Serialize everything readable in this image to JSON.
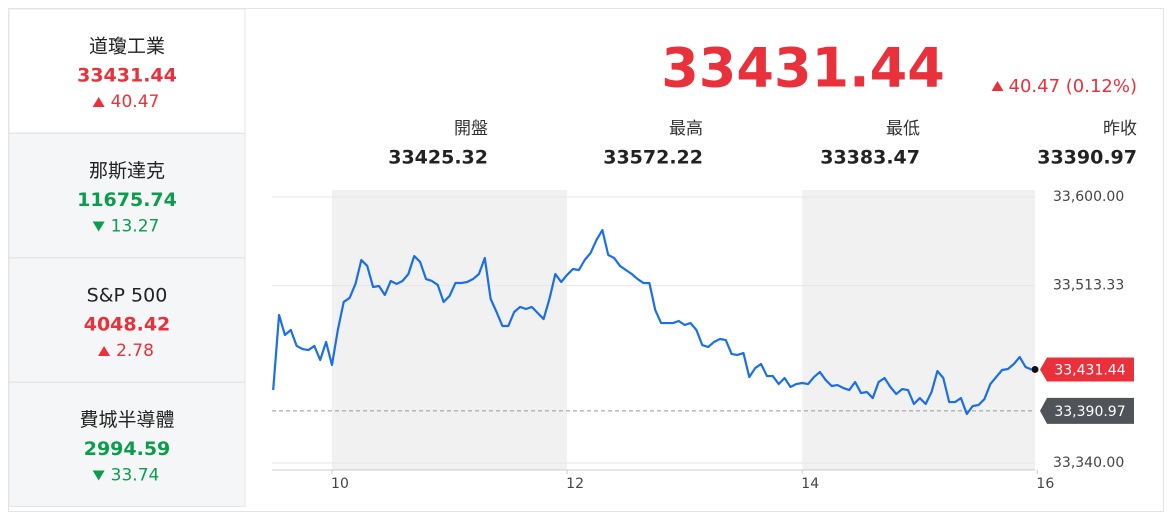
{
  "sidebar": {
    "items": [
      {
        "name": "道瓊工業",
        "value": 33431.44,
        "change": 40.47,
        "direction": "up"
      },
      {
        "name": "那斯達克",
        "value": 11675.74,
        "change": 13.27,
        "direction": "down"
      },
      {
        "name": "S&P 500",
        "value": 4048.42,
        "change": 2.78,
        "direction": "up"
      },
      {
        "name": "費城半導體",
        "value": 2994.59,
        "change": 33.74,
        "direction": "down"
      }
    ]
  },
  "quote": {
    "value": 33431.44,
    "change": "40.47 (0.12%)",
    "direction": "up",
    "stats": [
      {
        "label": "開盤",
        "value": 33425.32
      },
      {
        "label": "最高",
        "value": 33572.22
      },
      {
        "label": "最低",
        "value": 33383.47
      },
      {
        "label": "昨收",
        "value": 33390.97
      }
    ]
  },
  "colors": {
    "up": "#e8313a",
    "down": "#0b9c4c"
  },
  "chart_data": {
    "type": "line",
    "color": "#1a6fe6",
    "x": [
      9.5,
      9.55,
      9.6,
      9.65,
      9.7,
      9.75,
      9.8,
      9.85,
      9.9,
      9.95,
      10,
      10.05,
      10.1,
      10.15,
      10.2,
      10.25,
      10.3,
      10.35,
      10.4,
      10.45,
      10.5,
      10.55,
      10.6,
      10.65,
      10.7,
      10.75,
      10.8,
      10.85,
      10.9,
      10.95,
      11,
      11.05,
      11.1,
      11.15,
      11.2,
      11.25,
      11.3,
      11.35,
      11.4,
      11.45,
      11.5,
      11.55,
      11.6,
      11.65,
      11.7,
      11.75,
      11.8,
      11.85,
      11.9,
      11.95,
      12,
      12.05,
      12.1,
      12.15,
      12.2,
      12.25,
      12.3,
      12.35,
      12.4,
      12.45,
      12.5,
      12.55,
      12.6,
      12.65,
      12.7,
      12.75,
      12.8,
      12.85,
      12.9,
      12.95,
      13,
      13.05,
      13.1,
      13.15,
      13.2,
      13.25,
      13.3,
      13.35,
      13.4,
      13.45,
      13.5,
      13.55,
      13.6,
      13.65,
      13.7,
      13.75,
      13.8,
      13.85,
      13.9,
      13.95,
      14,
      14.05,
      14.1,
      14.15,
      14.2,
      14.25,
      14.3,
      14.35,
      14.4,
      14.45,
      14.5,
      14.55,
      14.6,
      14.65,
      14.7,
      14.75,
      14.8,
      14.85,
      14.9,
      14.95,
      15,
      15.05,
      15.1,
      15.15,
      15.2,
      15.25,
      15.3,
      15.35,
      15.4,
      15.45,
      15.5,
      15.55,
      15.6,
      15.65,
      15.7,
      15.75,
      15.8,
      15.85,
      15.9,
      15.95
    ],
    "values": [
      33411.3,
      33484.7,
      33465.1,
      33470.0,
      33454.4,
      33451.4,
      33450.4,
      33454.4,
      33440.7,
      33458.3,
      33435.8,
      33470.0,
      33497.4,
      33501.3,
      33515.0,
      33538.4,
      33532.6,
      33512.0,
      33513.0,
      33504.2,
      33517.9,
      33515.0,
      33517.9,
      33524.7,
      33542.3,
      33536.5,
      33519.8,
      33517.9,
      33514.0,
      33497.4,
      33503.2,
      33515.9,
      33515.9,
      33516.9,
      33519.8,
      33524.7,
      33540.4,
      33500.3,
      33487.6,
      33473.9,
      33473.9,
      33487.6,
      33492.5,
      33490.5,
      33492.5,
      33486.6,
      33480.7,
      33500.3,
      33524.7,
      33516.9,
      33523.8,
      33529.6,
      33528.6,
      33538.4,
      33545.3,
      33558.0,
      33567.7,
      33543.3,
      33540.4,
      33532.6,
      33528.6,
      33524.7,
      33519.8,
      33515.9,
      33515.9,
      33489.5,
      33476.8,
      33476.8,
      33476.8,
      33478.8,
      33474.9,
      33476.8,
      33470.0,
      33455.3,
      33453.4,
      33458.3,
      33461.2,
      33460.2,
      33446.5,
      33445.6,
      33447.5,
      33424.0,
      33432.8,
      33436.8,
      33425.0,
      33425.0,
      33417.2,
      33423.1,
      33414.3,
      33417.2,
      33418.2,
      33417.2,
      33424.0,
      33428.9,
      33421.1,
      33415.3,
      33416.2,
      33413.3,
      33411.3,
      33419.2,
      33408.4,
      33409.4,
      33403.5,
      33419.2,
      33423.1,
      33414.3,
      33407.4,
      33412.3,
      33411.3,
      33397.7,
      33403.5,
      33397.7,
      33409.4,
      33429.9,
      33423.1,
      33399.6,
      33399.6,
      33403.5,
      33387.9,
      33395.7,
      33396.7,
      33402.5,
      33417.2,
      33424.0,
      33430.9,
      33431.9,
      33436.8,
      33443.6,
      33433.8,
      33431.44
    ],
    "xlim": [
      9.49,
      15.98
    ],
    "xticks": [
      10,
      12,
      14,
      16
    ],
    "ylim": [
      33333.2,
      33606.8
    ],
    "yticks": [
      {
        "value": 33600,
        "label": "33,600.00"
      },
      {
        "value": 33513.33,
        "label": "33,513.33"
      },
      {
        "value": 33340,
        "label": "33,340.00"
      }
    ],
    "grid": true,
    "last": {
      "value": 33431.44,
      "label": "33,431.44"
    },
    "previous_close": {
      "value": 33390.97,
      "label": "33,390.97"
    }
  }
}
